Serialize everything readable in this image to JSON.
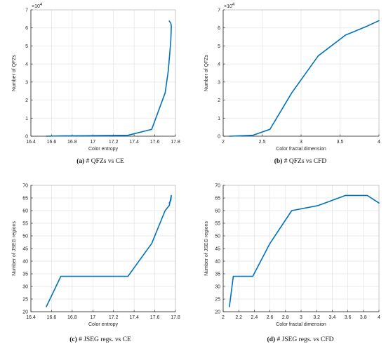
{
  "colors": {
    "line": "#0072BD",
    "grid": "#e3e3e3",
    "axis": "#262626",
    "frame": "#bfbfbf"
  },
  "chart_data": [
    {
      "type": "line",
      "caption_letter": "(a)",
      "caption_text": " # QFZs vs CE",
      "xlabel": "Color entropy",
      "ylabel": "Number of QFZs",
      "y_multiplier": "×10",
      "y_exponent": "4",
      "xlim": [
        16.4,
        17.8
      ],
      "ylim": [
        0,
        7
      ],
      "xticks": [
        16.4,
        16.6,
        16.8,
        17,
        17.2,
        17.4,
        17.6,
        17.8
      ],
      "xtick_labels": [
        "16.4",
        "16.6",
        "16.8",
        "17",
        "17.2",
        "17.4",
        "17.6",
        "17.8"
      ],
      "yticks": [
        0,
        1,
        2,
        3,
        4,
        5,
        6,
        7
      ],
      "ytick_labels": [
        "0",
        "1",
        "2",
        "3",
        "4",
        "5",
        "6",
        "7"
      ],
      "grid": true,
      "series": [
        {
          "x": [
            16.55,
            16.7,
            17.0,
            17.34,
            17.57,
            17.7,
            17.73,
            17.745,
            17.755,
            17.76,
            17.755,
            17.74
          ],
          "y": [
            0.0,
            0.02,
            0.03,
            0.05,
            0.38,
            2.4,
            3.6,
            4.6,
            5.3,
            6.1,
            6.25,
            6.38
          ]
        }
      ]
    },
    {
      "type": "line",
      "caption_letter": "(b)",
      "caption_text": " # QFZs vs CFD",
      "xlabel": "Color fractal dimension",
      "ylabel": "Number of QFZs",
      "y_multiplier": "×10",
      "y_exponent": "4",
      "xlim": [
        2,
        4
      ],
      "ylim": [
        0,
        7
      ],
      "xticks": [
        2,
        2.5,
        3,
        3.5,
        4
      ],
      "xtick_labels": [
        "2",
        "2.5",
        "3",
        "3.5",
        "4"
      ],
      "yticks": [
        0,
        1,
        2,
        3,
        4,
        5,
        6,
        7
      ],
      "ytick_labels": [
        "0",
        "1",
        "2",
        "3",
        "4",
        "5",
        "6",
        "7"
      ],
      "grid": true,
      "series": [
        {
          "x": [
            2.08,
            2.38,
            2.6,
            2.88,
            3.22,
            3.57,
            3.85,
            4.0
          ],
          "y": [
            0.0,
            0.05,
            0.38,
            2.4,
            4.45,
            5.6,
            6.1,
            6.4
          ]
        }
      ]
    },
    {
      "type": "line",
      "caption_letter": "(c)",
      "caption_text": " # JSEG regs. vs CE",
      "xlabel": "Color entropy",
      "ylabel": "Number of JSEG regions",
      "xlim": [
        16.4,
        17.8
      ],
      "ylim": [
        20,
        70
      ],
      "xticks": [
        16.4,
        16.6,
        16.8,
        17,
        17.2,
        17.4,
        17.6,
        17.8
      ],
      "xtick_labels": [
        "16.4",
        "16.6",
        "16.8",
        "17",
        "17.2",
        "17.4",
        "17.6",
        "17.8"
      ],
      "yticks": [
        20,
        25,
        30,
        35,
        40,
        45,
        50,
        55,
        60,
        65,
        70
      ],
      "ytick_labels": [
        "20",
        "25",
        "30",
        "35",
        "40",
        "45",
        "50",
        "55",
        "60",
        "65",
        "70"
      ],
      "grid": true,
      "series": [
        {
          "x": [
            16.55,
            16.69,
            17.34,
            17.57,
            17.7,
            17.74,
            17.76,
            17.755,
            17.74
          ],
          "y": [
            22,
            34,
            34,
            47,
            60,
            62,
            66,
            64,
            63
          ]
        }
      ]
    },
    {
      "type": "line",
      "caption_letter": "(d)",
      "caption_text": " # JSEG regs. vs CFD",
      "xlabel": "Color fractal dimension",
      "ylabel": "Number of JSEG regions",
      "xlim": [
        2,
        4
      ],
      "ylim": [
        20,
        70
      ],
      "xticks": [
        2,
        2.2,
        2.4,
        2.6,
        2.8,
        3,
        3.2,
        3.4,
        3.6,
        3.8,
        4
      ],
      "xtick_labels": [
        "2",
        "2.2",
        "2.4",
        "2.6",
        "2.8",
        "3",
        "3.2",
        "3.4",
        "3.6",
        "3.8",
        "4"
      ],
      "yticks": [
        20,
        25,
        30,
        35,
        40,
        45,
        50,
        55,
        60,
        65,
        70
      ],
      "ytick_labels": [
        "20",
        "25",
        "30",
        "35",
        "40",
        "45",
        "50",
        "55",
        "60",
        "65",
        "70"
      ],
      "grid": true,
      "series": [
        {
          "x": [
            2.08,
            2.13,
            2.38,
            2.6,
            2.88,
            3.22,
            3.57,
            3.85,
            4.0
          ],
          "y": [
            22,
            34,
            34,
            47,
            60,
            62,
            66,
            66,
            63
          ]
        }
      ]
    }
  ]
}
